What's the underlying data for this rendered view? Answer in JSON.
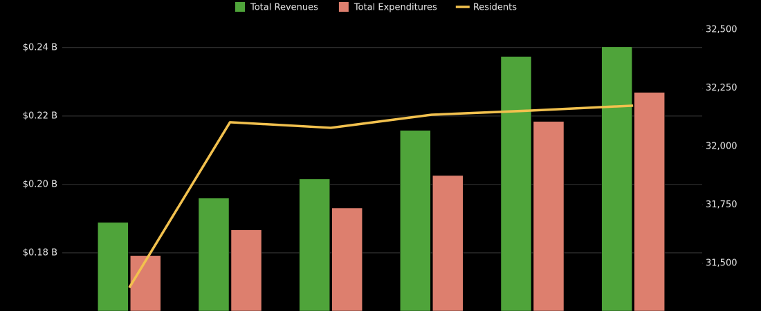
{
  "chart_data": {
    "type": "bar",
    "categories": [
      null,
      null,
      null,
      null,
      null,
      null
    ],
    "series": [
      {
        "name": "Total Revenues",
        "type": "bar",
        "color": "#4fa43a",
        "values": [
          0.1889,
          0.196,
          0.2016,
          0.2158,
          0.2374,
          0.2402
        ]
      },
      {
        "name": "Total Expenditures",
        "type": "bar",
        "color": "#dd7f6e",
        "values": [
          0.1792,
          0.1867,
          0.1931,
          0.2026,
          0.2184,
          0.2269
        ]
      },
      {
        "name": "Residents",
        "type": "line",
        "axis": "y2",
        "color": "#f2c14e",
        "values": [
          31396,
          32104,
          32080,
          32136,
          32154,
          32175
        ]
      }
    ],
    "ylim": [
      0.163,
      0.2539
    ],
    "yticks": [
      {
        "value": 0.18,
        "label": "$0.18 B"
      },
      {
        "value": 0.2,
        "label": "$0.20 B"
      },
      {
        "value": 0.22,
        "label": "$0.22 B"
      },
      {
        "value": 0.24,
        "label": "$0.24 B"
      }
    ],
    "y2lim": [
      31296,
      32627
    ],
    "y2ticks": [
      {
        "value": 31500,
        "label": "31,500"
      },
      {
        "value": 31750,
        "label": "31,750"
      },
      {
        "value": 32000,
        "label": "32,000"
      },
      {
        "value": 32250,
        "label": "32,250"
      },
      {
        "value": 32500,
        "label": "32,500"
      }
    ],
    "grid": true
  }
}
